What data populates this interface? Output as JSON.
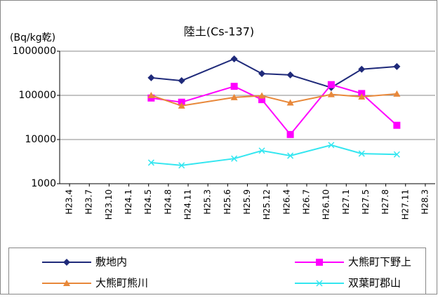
{
  "chart_data": {
    "type": "line",
    "title": "陸土(Cs-137)",
    "y_label": "(Bq/kg乾)",
    "log_scale": true,
    "grid": true,
    "legend": "bottom",
    "ylim": [
      1000,
      1000000
    ],
    "yticks": [
      1000,
      10000,
      100000,
      1000000
    ],
    "xlim": [
      -0.5,
      18.5
    ],
    "xticks": [
      {
        "value": 0,
        "label": "H23.4"
      },
      {
        "value": 1,
        "label": "H23.7"
      },
      {
        "value": 2,
        "label": "H23.10"
      },
      {
        "value": 3,
        "label": "H24.1"
      },
      {
        "value": 4,
        "label": "H24.5"
      },
      {
        "value": 5,
        "label": "H24.8"
      },
      {
        "value": 6,
        "label": "H24.11"
      },
      {
        "value": 7,
        "label": "H25.3"
      },
      {
        "value": 8,
        "label": "H25.6"
      },
      {
        "value": 9,
        "label": "H25.9"
      },
      {
        "value": 10,
        "label": "H25.12"
      },
      {
        "value": 11,
        "label": "H26.4"
      },
      {
        "value": 12,
        "label": "H26.7"
      },
      {
        "value": 13,
        "label": "H26.10"
      },
      {
        "value": 14,
        "label": "H27.1"
      },
      {
        "value": 15,
        "label": "H27.5"
      },
      {
        "value": 16,
        "label": "H27.8"
      },
      {
        "value": 17,
        "label": "H27.11"
      },
      {
        "value": 18,
        "label": "H28.3"
      }
    ],
    "x": [
      4.13,
      5.67,
      8.33,
      9.73,
      11.17,
      13.24,
      14.78,
      16.56
    ],
    "series": [
      {
        "name": "敷地内",
        "color": "#1f2a7a",
        "marker": "diamond",
        "values": [
          250000,
          215000,
          670000,
          310000,
          290000,
          150000,
          390000,
          450000
        ]
      },
      {
        "name": "大熊町下野上",
        "color": "#ff00ff",
        "marker": "square",
        "values": [
          87000,
          70000,
          160000,
          80000,
          13000,
          175000,
          110000,
          21000
        ]
      },
      {
        "name": "大熊町熊川",
        "color": "#e8883a",
        "marker": "triangle",
        "values": [
          100000,
          58000,
          90000,
          98000,
          68000,
          105000,
          93000,
          108000
        ]
      },
      {
        "name": "双葉町郡山",
        "color": "#33e6f0",
        "marker": "x",
        "values": [
          3000,
          2600,
          3700,
          5600,
          4300,
          7500,
          4800,
          4600
        ]
      }
    ]
  }
}
